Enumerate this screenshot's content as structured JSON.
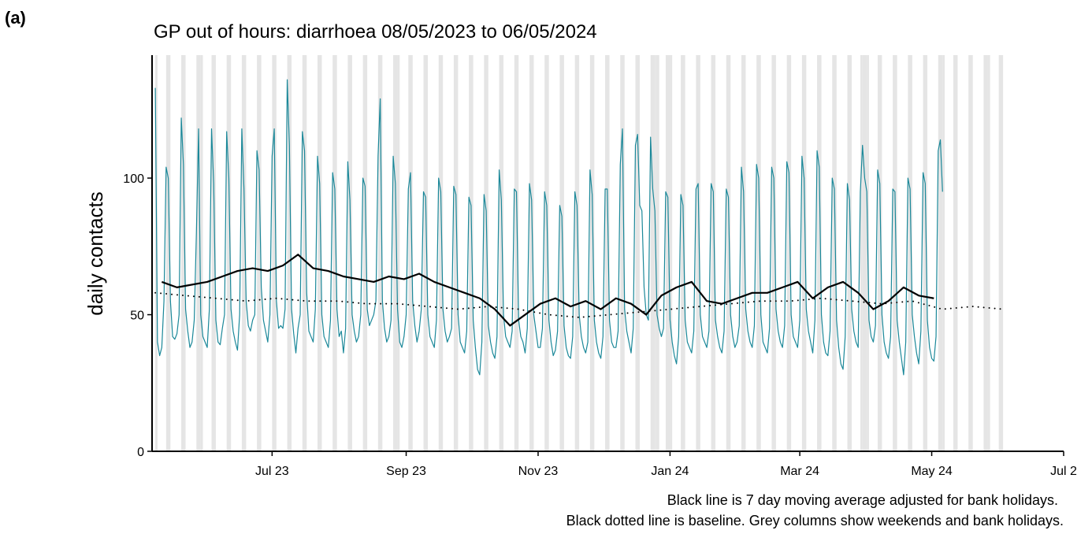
{
  "panel_label": "(a)",
  "chart_data": {
    "type": "line",
    "title": "GP out of hours: diarrhoea 08/05/2023 to 06/05/2024",
    "y_label": "daily contacts",
    "notes": [
      "Black line is 7 day moving average adjusted for bank holidays.",
      "Black dotted line is baseline. Grey columns show weekends and bank holidays."
    ],
    "xlim": [
      -1.5,
      420
    ],
    "xticks": [
      {
        "value": 54,
        "label": "Jul 23"
      },
      {
        "value": 116,
        "label": "Sep 23"
      },
      {
        "value": 177,
        "label": "Nov 23"
      },
      {
        "value": 238,
        "label": "Jan 24"
      },
      {
        "value": 298,
        "label": "Mar 24"
      },
      {
        "value": 359,
        "label": "May 24"
      },
      {
        "value": 420,
        "label": "Jul 2"
      }
    ],
    "ylim": [
      0,
      145
    ],
    "yticks": [
      0,
      50,
      100
    ],
    "shade_color": "#e5e5e5",
    "weekends": [
      5,
      12,
      19,
      26,
      33,
      40,
      47,
      54,
      61,
      68,
      75,
      82,
      89,
      96,
      103,
      110,
      117,
      124,
      131,
      138,
      145,
      152,
      159,
      166,
      173,
      180,
      187,
      194,
      201,
      208,
      215,
      222,
      229,
      236,
      243,
      250,
      257,
      264,
      271,
      278,
      285,
      292,
      299,
      306,
      313,
      320,
      327,
      334,
      341,
      348,
      355,
      362,
      369,
      376,
      383,
      390
    ],
    "bank_holidays": [
      0,
      21,
      112,
      231,
      232,
      238,
      326,
      329,
      364,
      385
    ],
    "x": [
      0,
      1,
      2,
      3,
      4,
      5,
      6,
      7,
      8,
      9,
      10,
      11,
      12,
      13,
      14,
      15,
      16,
      17,
      18,
      19,
      20,
      21,
      22,
      23,
      24,
      25,
      26,
      27,
      28,
      29,
      30,
      31,
      32,
      33,
      34,
      35,
      36,
      37,
      38,
      39,
      40,
      41,
      42,
      43,
      44,
      45,
      46,
      47,
      48,
      49,
      50,
      51,
      52,
      53,
      54,
      55,
      56,
      57,
      58,
      59,
      60,
      61,
      62,
      63,
      64,
      65,
      66,
      67,
      68,
      69,
      70,
      71,
      72,
      73,
      74,
      75,
      76,
      77,
      78,
      79,
      80,
      81,
      82,
      83,
      84,
      85,
      86,
      87,
      88,
      89,
      90,
      91,
      92,
      93,
      94,
      95,
      96,
      97,
      98,
      99,
      100,
      101,
      102,
      103,
      104,
      105,
      106,
      107,
      108,
      109,
      110,
      111,
      112,
      113,
      114,
      115,
      116,
      117,
      118,
      119,
      120,
      121,
      122,
      123,
      124,
      125,
      126,
      127,
      128,
      129,
      130,
      131,
      132,
      133,
      134,
      135,
      136,
      137,
      138,
      139,
      140,
      141,
      142,
      143,
      144,
      145,
      146,
      147,
      148,
      149,
      150,
      151,
      152,
      153,
      154,
      155,
      156,
      157,
      158,
      159,
      160,
      161,
      162,
      163,
      164,
      165,
      166,
      167,
      168,
      169,
      170,
      171,
      172,
      173,
      174,
      175,
      176,
      177,
      178,
      179,
      180,
      181,
      182,
      183,
      184,
      185,
      186,
      187,
      188,
      189,
      190,
      191,
      192,
      193,
      194,
      195,
      196,
      197,
      198,
      199,
      200,
      201,
      202,
      203,
      204,
      205,
      206,
      207,
      208,
      209,
      210,
      211,
      212,
      213,
      214,
      215,
      216,
      217,
      218,
      219,
      220,
      221,
      222,
      223,
      224,
      225,
      226,
      227,
      228,
      229,
      230,
      231,
      232,
      233,
      234,
      235,
      236,
      237,
      238,
      239,
      240,
      241,
      242,
      243,
      244,
      245,
      246,
      247,
      248,
      249,
      250,
      251,
      252,
      253,
      254,
      255,
      256,
      257,
      258,
      259,
      260,
      261,
      262,
      263,
      264,
      265,
      266,
      267,
      268,
      269,
      270,
      271,
      272,
      273,
      274,
      275,
      276,
      277,
      278,
      279,
      280,
      281,
      282,
      283,
      284,
      285,
      286,
      287,
      288,
      289,
      290,
      291,
      292,
      293,
      294,
      295,
      296,
      297,
      298,
      299,
      300,
      301,
      302,
      303,
      304,
      305,
      306,
      307,
      308,
      309,
      310,
      311,
      312,
      313,
      314,
      315,
      316,
      317,
      318,
      319,
      320,
      321,
      322,
      323,
      324,
      325,
      326,
      327,
      328,
      329,
      330,
      331,
      332,
      333,
      334,
      335,
      336,
      337,
      338,
      339,
      340,
      341,
      342,
      343,
      344,
      345,
      346,
      347,
      348,
      349,
      350,
      351,
      352,
      353,
      354,
      355,
      356,
      357,
      358,
      359,
      360,
      361,
      362,
      363,
      364
    ],
    "series": [
      {
        "color": "#1b8899",
        "line_style": "solid",
        "width": 1.2,
        "values": [
          133,
          40,
          35,
          38,
          55,
          104,
          100,
          55,
          42,
          41,
          43,
          50,
          122,
          105,
          52,
          44,
          38,
          40,
          48,
          80,
          118,
          50,
          42,
          40,
          38,
          52,
          118,
          98,
          48,
          40,
          39,
          45,
          50,
          117,
          100,
          52,
          44,
          40,
          37,
          50,
          118,
          96,
          55,
          46,
          44,
          48,
          50,
          110,
          103,
          60,
          48,
          44,
          40,
          50,
          108,
          118,
          55,
          45,
          46,
          45,
          52,
          136,
          112,
          52,
          43,
          36,
          45,
          50,
          117,
          110,
          58,
          44,
          42,
          40,
          52,
          108,
          98,
          50,
          42,
          40,
          38,
          48,
          102,
          96,
          52,
          42,
          44,
          36,
          45,
          106,
          92,
          50,
          44,
          40,
          42,
          50,
          100,
          97,
          52,
          46,
          48,
          50,
          55,
          108,
          129,
          55,
          45,
          40,
          42,
          48,
          108,
          98,
          52,
          40,
          38,
          42,
          50,
          96,
          102,
          55,
          46,
          40,
          44,
          52,
          95,
          93,
          50,
          42,
          40,
          38,
          48,
          100,
          95,
          52,
          44,
          40,
          42,
          45,
          97,
          94,
          50,
          40,
          38,
          36,
          44,
          93,
          90,
          48,
          38,
          30,
          28,
          40,
          94,
          88,
          46,
          40,
          36,
          34,
          42,
          103,
          92,
          50,
          42,
          40,
          38,
          44,
          96,
          95,
          48,
          42,
          40,
          36,
          45,
          98,
          92,
          50,
          44,
          38,
          38,
          45,
          95,
          90,
          48,
          40,
          35,
          37,
          44,
          90,
          86,
          46,
          38,
          35,
          34,
          42,
          95,
          90,
          50,
          42,
          38,
          36,
          40,
          103,
          94,
          48,
          40,
          36,
          34,
          42,
          96,
          96,
          48,
          40,
          38,
          38,
          44,
          105,
          118,
          52,
          44,
          40,
          36,
          45,
          112,
          116,
          90,
          88,
          60,
          50,
          48,
          115,
          96,
          88,
          50,
          45,
          42,
          45,
          95,
          93,
          48,
          40,
          35,
          32,
          42,
          94,
          90,
          48,
          40,
          38,
          36,
          44,
          96,
          98,
          50,
          42,
          40,
          38,
          44,
          98,
          95,
          48,
          42,
          38,
          36,
          44,
          96,
          93,
          50,
          42,
          38,
          40,
          46,
          104,
          95,
          52,
          44,
          40,
          38,
          46,
          105,
          100,
          50,
          40,
          38,
          36,
          45,
          104,
          100,
          52,
          44,
          40,
          38,
          46,
          106,
          102,
          50,
          42,
          40,
          38,
          48,
          108,
          100,
          52,
          44,
          40,
          36,
          48,
          110,
          104,
          50,
          40,
          36,
          35,
          44,
          100,
          96,
          48,
          38,
          32,
          30,
          42,
          98,
          92,
          52,
          44,
          40,
          38,
          95,
          112,
          100,
          95,
          48,
          42,
          40,
          46,
          103,
          98,
          50,
          40,
          36,
          34,
          42,
          96,
          95,
          48,
          40,
          34,
          28,
          40,
          100,
          96,
          50,
          42,
          36,
          32,
          44,
          102,
          98,
          48,
          38,
          34,
          33,
          42,
          110,
          114,
          95
        ]
      },
      {
        "color": "#000000",
        "line_style": "solid",
        "width": 2.2,
        "x": [
          3,
          10,
          17,
          24,
          31,
          38,
          45,
          52,
          59,
          66,
          73,
          80,
          87,
          94,
          101,
          108,
          115,
          122,
          129,
          136,
          143,
          150,
          157,
          164,
          171,
          178,
          185,
          192,
          199,
          206,
          213,
          220,
          227,
          234,
          241,
          248,
          255,
          262,
          269,
          276,
          283,
          290,
          297,
          304,
          311,
          318,
          325,
          332,
          339,
          346,
          353,
          360
        ],
        "values": [
          62,
          60,
          61,
          62,
          64,
          66,
          67,
          66,
          68,
          72,
          67,
          66,
          64,
          63,
          62,
          64,
          63,
          65,
          62,
          60,
          58,
          56,
          52,
          46,
          50,
          54,
          56,
          53,
          55,
          52,
          56,
          54,
          50,
          57,
          60,
          62,
          55,
          54,
          56,
          58,
          58,
          60,
          62,
          56,
          60,
          62,
          58,
          52,
          55,
          60,
          57,
          56
        ]
      },
      {
        "color": "#000000",
        "line_style": "dotted",
        "width": 2,
        "x": [
          0,
          14,
          28,
          42,
          56,
          70,
          84,
          98,
          112,
          126,
          140,
          154,
          168,
          182,
          196,
          210,
          224,
          238,
          252,
          266,
          280,
          294,
          308,
          322,
          336,
          350,
          364,
          378,
          392
        ],
        "values": [
          58,
          57,
          56,
          55,
          56,
          55,
          55,
          54,
          54,
          53,
          52,
          53,
          52,
          50,
          49,
          50,
          51,
          52,
          53,
          54,
          55,
          55,
          56,
          55,
          54,
          55,
          52,
          53,
          52
        ]
      }
    ]
  }
}
